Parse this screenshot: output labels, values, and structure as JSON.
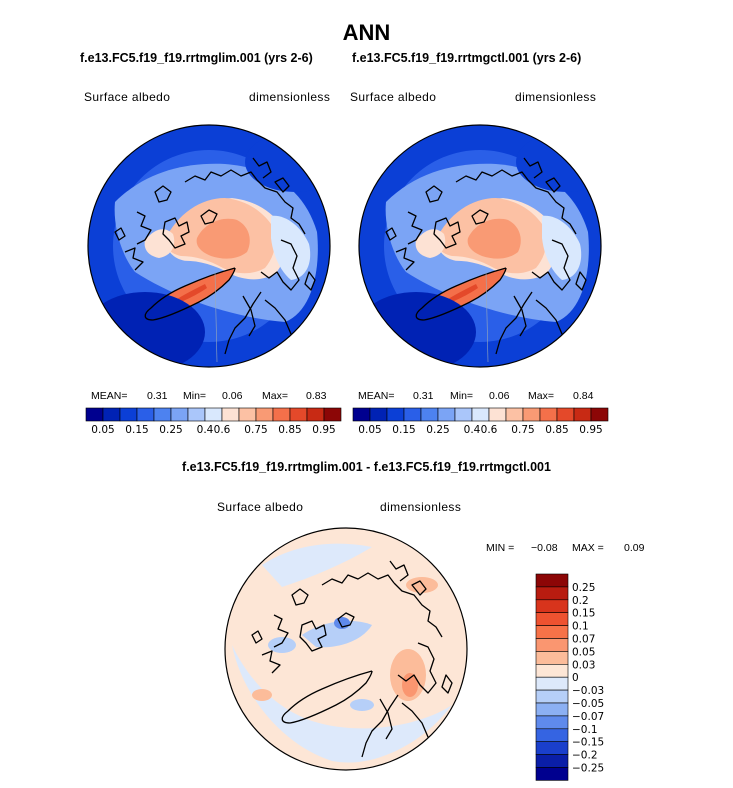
{
  "page": {
    "title": "ANN",
    "colors": {
      "coastline": "#000000",
      "background": "#ffffff"
    }
  },
  "chart_data": [
    {
      "type": "heatmap",
      "projection": "north-polar-stereographic",
      "title": "f.e13.FC5.f19_f19.rrtmglim.001 (yrs 2-6)",
      "variable": "Surface albedo",
      "units": "dimensionless",
      "stats": {
        "mean_label": "MEAN=",
        "mean": "0.31",
        "min_label": "Min=",
        "min": "0.06",
        "max_label": "Max=",
        "max": "0.83"
      },
      "colorbar": {
        "ticks": [
          "0.05",
          "0.15",
          "0.25",
          "0.4",
          "0.6",
          "0.75",
          "0.85",
          "0.95"
        ],
        "colors": [
          "#00008f",
          "#0022b4",
          "#0b3fd6",
          "#2a5fe8",
          "#4d82f0",
          "#7ba4f5",
          "#aac6fa",
          "#d9e8fd",
          "#fde2d4",
          "#fcc1a4",
          "#f99a74",
          "#f4704a",
          "#e4492a",
          "#c82a14",
          "#8c0606"
        ]
      }
    },
    {
      "type": "heatmap",
      "projection": "north-polar-stereographic",
      "title": "f.e13.FC5.f19_f19.rrtmgctl.001 (yrs 2-6)",
      "variable": "Surface albedo",
      "units": "dimensionless",
      "stats": {
        "mean_label": "MEAN=",
        "mean": "0.31",
        "min_label": "Min=",
        "min": "0.06",
        "max_label": "Max=",
        "max": "0.84"
      },
      "colorbar": {
        "ticks": [
          "0.05",
          "0.15",
          "0.25",
          "0.4",
          "0.6",
          "0.75",
          "0.85",
          "0.95"
        ],
        "colors": [
          "#00008f",
          "#0022b4",
          "#0b3fd6",
          "#2a5fe8",
          "#4d82f0",
          "#7ba4f5",
          "#aac6fa",
          "#d9e8fd",
          "#fde2d4",
          "#fcc1a4",
          "#f99a74",
          "#f4704a",
          "#e4492a",
          "#c82a14",
          "#8c0606"
        ]
      }
    },
    {
      "type": "heatmap",
      "projection": "north-polar-stereographic",
      "title": "f.e13.FC5.f19_f19.rrtmglim.001 - f.e13.FC5.f19_f19.rrtmgctl.001",
      "variable": "Surface albedo",
      "units": "dimensionless",
      "stats": {
        "min_label": "MIN =",
        "min": "−0.08",
        "max_label": "MAX =",
        "max": "0.09"
      },
      "colorbar": {
        "ticks": [
          "0.25",
          "0.2",
          "0.15",
          "0.1",
          "0.07",
          "0.05",
          "0.03",
          "0",
          "−0.03",
          "−0.05",
          "−0.07",
          "−0.1",
          "−0.15",
          "−0.2",
          "−0.25"
        ],
        "colors": [
          "#8c0606",
          "#b81c10",
          "#d8341c",
          "#ee5230",
          "#f77248",
          "#fa9670",
          "#fcbc9a",
          "#fde6d6",
          "#dde9fb",
          "#b6cff8",
          "#8cb0f3",
          "#5f8aec",
          "#3564e2",
          "#1a3fcc",
          "#0a1ea8",
          "#00008f"
        ]
      }
    }
  ]
}
